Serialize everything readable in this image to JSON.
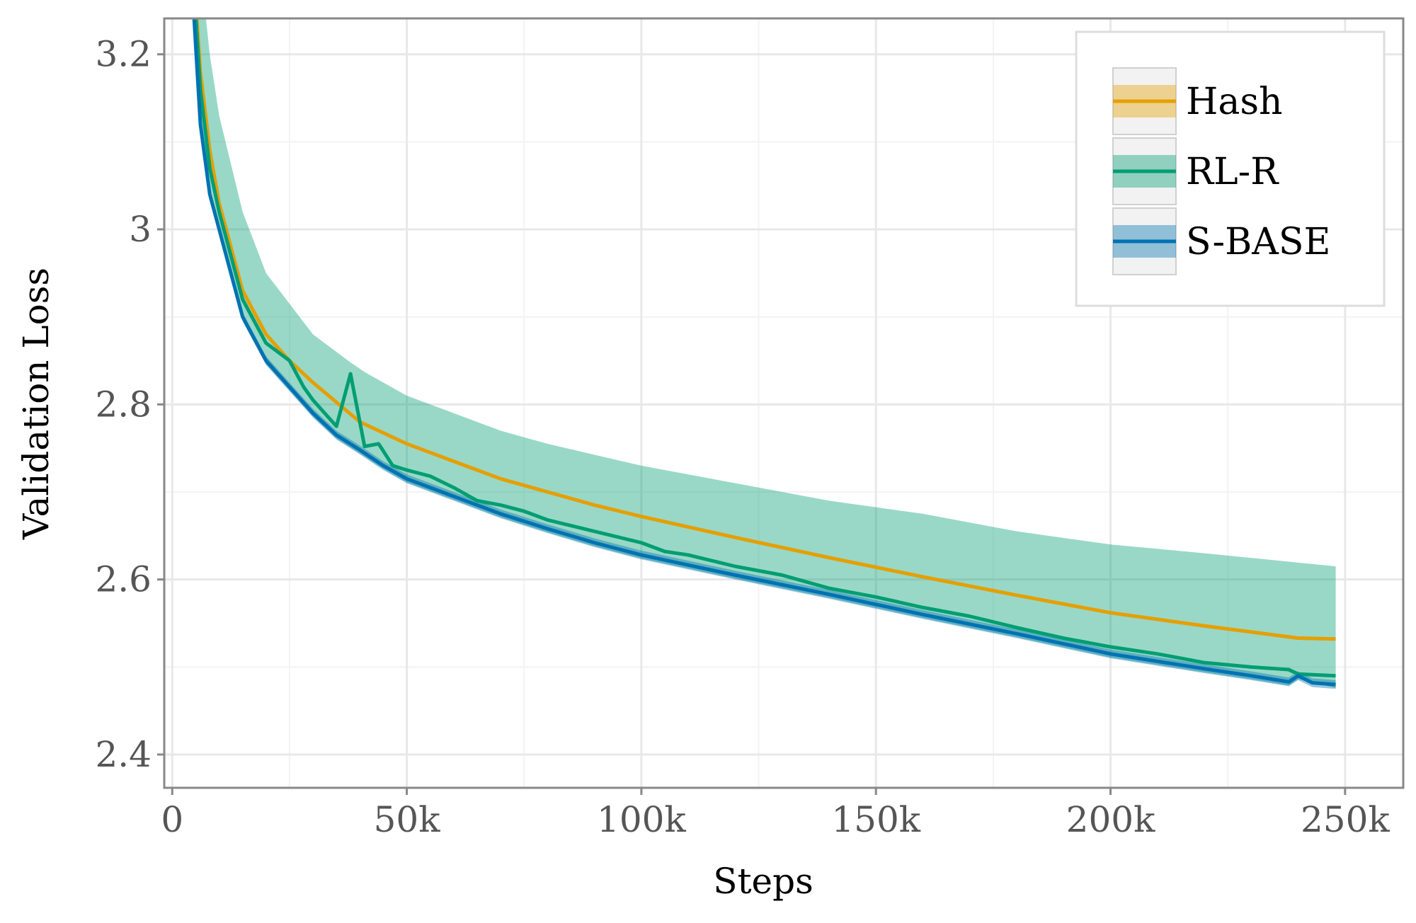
{
  "chart_data": {
    "type": "line",
    "title": "",
    "xlabel": "Steps",
    "ylabel": "Validation Loss",
    "xlim": [
      -1700,
      262400
    ],
    "ylim": [
      2.362,
      3.241
    ],
    "grid": true,
    "legend_position": "top-right",
    "x_ticks": [
      0,
      50000,
      100000,
      150000,
      200000,
      250000
    ],
    "x_tick_labels": [
      "0",
      "50k",
      "100k",
      "150k",
      "200k",
      "250k"
    ],
    "y_ticks": [
      2.4,
      2.6,
      2.8,
      3.0,
      3.2
    ],
    "y_tick_labels": [
      "2.4",
      "2.6",
      "2.8",
      "3",
      "3.2"
    ],
    "series": [
      {
        "name": "Hash",
        "color": "#E69F00",
        "x": [
          4000,
          6000,
          8000,
          10000,
          15000,
          20000,
          25000,
          30000,
          40000,
          50000,
          60000,
          70000,
          80000,
          90000,
          100000,
          120000,
          140000,
          160000,
          180000,
          200000,
          220000,
          240000,
          248000
        ],
        "y": [
          3.34,
          3.18,
          3.09,
          3.03,
          2.93,
          2.88,
          2.85,
          2.825,
          2.78,
          2.755,
          2.735,
          2.715,
          2.7,
          2.685,
          2.672,
          2.648,
          2.625,
          2.603,
          2.582,
          2.562,
          2.547,
          2.533,
          2.532
        ],
        "band_halfwidth": 0.002
      },
      {
        "name": "RL-R",
        "color": "#009E73",
        "x": [
          4000,
          6000,
          8000,
          10000,
          15000,
          20000,
          25000,
          28000,
          30000,
          35000,
          38000,
          41000,
          44000,
          47000,
          50000,
          55000,
          60000,
          65000,
          70000,
          75000,
          80000,
          90000,
          100000,
          105000,
          110000,
          120000,
          130000,
          140000,
          150000,
          160000,
          170000,
          180000,
          190000,
          200000,
          210000,
          220000,
          230000,
          238000,
          240000,
          248000
        ],
        "y": [
          3.33,
          3.16,
          3.07,
          3.02,
          2.92,
          2.87,
          2.85,
          2.82,
          2.805,
          2.775,
          2.835,
          2.752,
          2.755,
          2.73,
          2.725,
          2.718,
          2.705,
          2.69,
          2.685,
          2.678,
          2.668,
          2.655,
          2.642,
          2.632,
          2.628,
          2.615,
          2.605,
          2.59,
          2.58,
          2.568,
          2.558,
          2.545,
          2.533,
          2.523,
          2.515,
          2.505,
          2.5,
          2.497,
          2.492,
          2.49
        ],
        "band_upper_x": [
          4000,
          6000,
          8000,
          10000,
          15000,
          20000,
          30000,
          40000,
          50000,
          60000,
          70000,
          80000,
          100000,
          120000,
          140000,
          160000,
          180000,
          200000,
          220000,
          248000
        ],
        "band_upper": [
          3.4,
          3.3,
          3.2,
          3.13,
          3.02,
          2.95,
          2.88,
          2.84,
          2.81,
          2.79,
          2.77,
          2.755,
          2.73,
          2.71,
          2.69,
          2.675,
          2.655,
          2.64,
          2.63,
          2.615
        ]
      },
      {
        "name": "S-BASE",
        "color": "#0072B2",
        "x": [
          4000,
          6000,
          8000,
          10000,
          15000,
          20000,
          25000,
          30000,
          35000,
          40000,
          45000,
          50000,
          60000,
          70000,
          80000,
          90000,
          100000,
          120000,
          140000,
          160000,
          180000,
          200000,
          220000,
          230000,
          238000,
          240000,
          243000,
          248000
        ],
        "y": [
          3.3,
          3.12,
          3.04,
          3.0,
          2.9,
          2.85,
          2.82,
          2.79,
          2.765,
          2.748,
          2.73,
          2.715,
          2.695,
          2.675,
          2.658,
          2.642,
          2.628,
          2.605,
          2.583,
          2.56,
          2.538,
          2.515,
          2.498,
          2.49,
          2.483,
          2.49,
          2.482,
          2.48
        ],
        "band_halfwidth": 0.005
      }
    ]
  }
}
